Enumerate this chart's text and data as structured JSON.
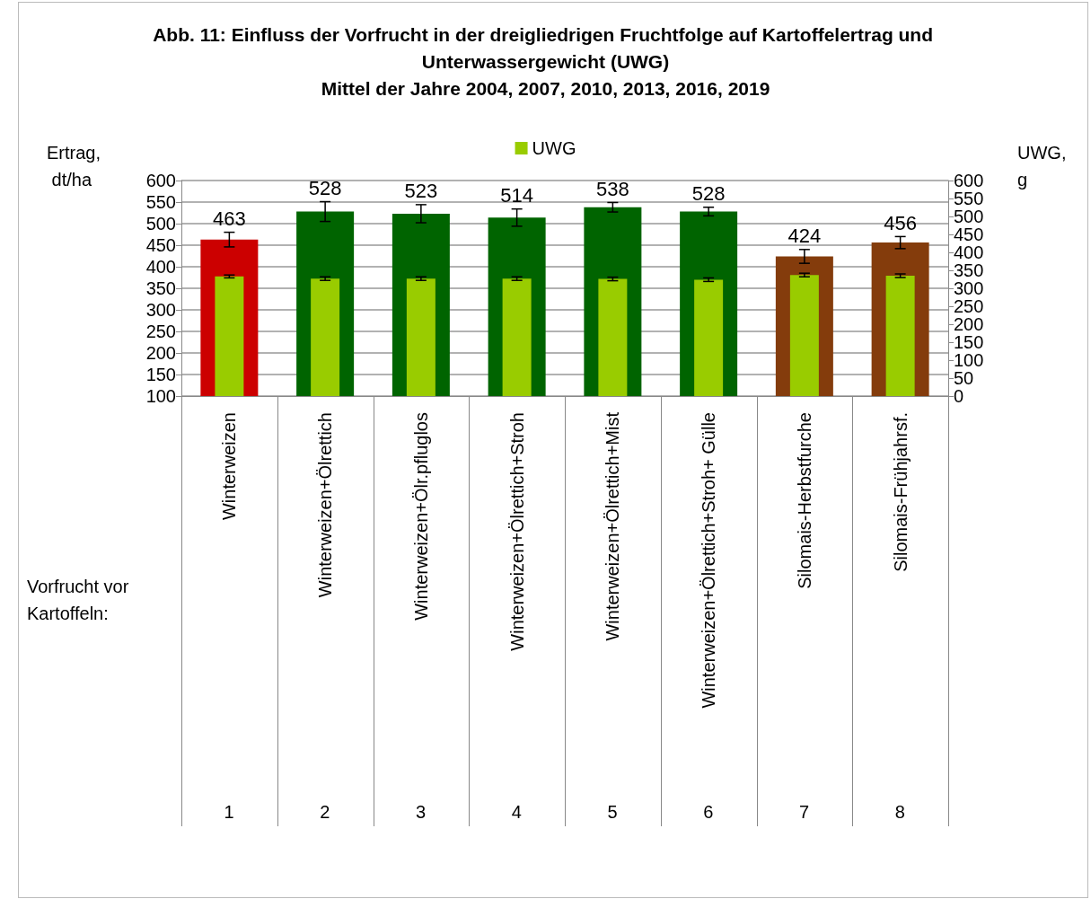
{
  "chart_data": {
    "type": "bar",
    "title": "Abb. 11: Einfluss der Vorfrucht in der dreigliedrigen Fruchtfolge auf Kartoffelertrag und Unterwassergewicht (UWG)",
    "subtitle": "Mittel der Jahre 2004, 2007, 2010, 2013, 2016, 2019",
    "xlabel": "Vorfrucht vor Kartoffeln:",
    "ylabel": "Ertrag, dt/ha",
    "y2label": "UWG, g",
    "categories": [
      "Winterweizen",
      "Winterweizen+Ölrettich",
      "Winterweizen+Ölr.pfluglos",
      "Winterweizen+Ölrettich+Stroh",
      "Winterweizen+Ölrettich+Mist",
      "Winterweizen+Ölrettich+Stroh+ Gülle",
      "Silomais-Herbstfurche",
      "Silomais-Frühjahrsf."
    ],
    "annotations": [
      "1",
      "2",
      "3",
      "4",
      "5",
      "6",
      "7",
      "8"
    ],
    "series": [
      {
        "colors": [
          "#cc0000",
          "#006400",
          "#006400",
          "#006400",
          "#006400",
          "#006400",
          "#843c0c",
          "#843c0c"
        ],
        "values": [
          463,
          528,
          523,
          514,
          538,
          528,
          424,
          456
        ],
        "errors": [
          17,
          23,
          21,
          20,
          11,
          10,
          16,
          14
        ],
        "value_labels": [
          "463",
          "528",
          "523",
          "514",
          "538",
          "528",
          "424",
          "456"
        ]
      },
      {
        "name": "UWG",
        "color": "#99cc00",
        "axis": "y2",
        "values": [
          333,
          327,
          327,
          327,
          326,
          324,
          337,
          335
        ],
        "errors": [
          4,
          5,
          5,
          5,
          5,
          5,
          5,
          5
        ]
      }
    ],
    "ylim": [
      100,
      600
    ],
    "yticks": [
      100,
      150,
      200,
      250,
      300,
      350,
      400,
      450,
      500,
      550,
      600
    ],
    "y2lim": [
      0,
      600
    ],
    "y2ticks": [
      0,
      50,
      100,
      150,
      200,
      250,
      300,
      350,
      400,
      450,
      500,
      550,
      600
    ],
    "grid": "y",
    "legend": "top"
  }
}
